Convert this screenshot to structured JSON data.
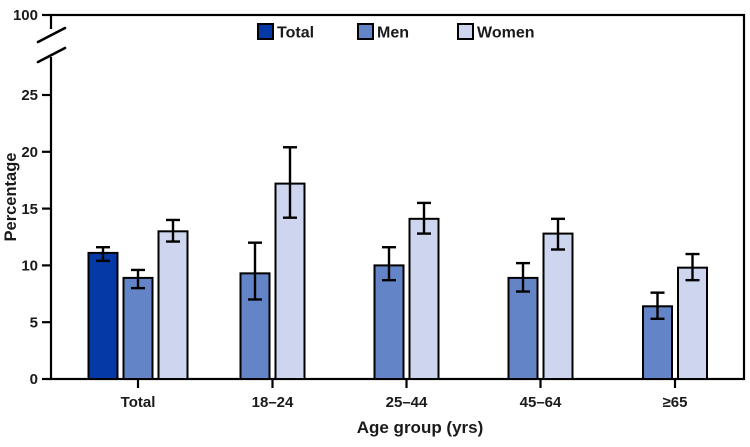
{
  "figure": {
    "background": "#ffffff",
    "text_color": "#1a1a1a",
    "axis_color": "#000000"
  },
  "chart_data": {
    "type": "bar",
    "title": "",
    "xlabel": "Age group (yrs)",
    "ylabel": "Percentage",
    "categories": [
      "Total",
      "18–24",
      "25–44",
      "45–64",
      "≥65"
    ],
    "series": [
      {
        "name": "Total",
        "color": "#0439A6",
        "values": [
          11.1,
          null,
          null,
          null,
          null
        ],
        "ci_low": [
          10.4,
          null,
          null,
          null,
          null
        ],
        "ci_high": [
          11.6,
          null,
          null,
          null,
          null
        ]
      },
      {
        "name": "Men",
        "color": "#6384C6",
        "values": [
          8.9,
          9.3,
          10.0,
          8.9,
          6.4
        ],
        "ci_low": [
          8.0,
          7.0,
          8.7,
          7.7,
          5.3
        ],
        "ci_high": [
          9.6,
          12.0,
          11.6,
          10.2,
          7.6
        ]
      },
      {
        "name": "Women",
        "color": "#CDD6EE",
        "values": [
          13.0,
          17.2,
          14.1,
          12.8,
          9.8
        ],
        "ci_low": [
          12.1,
          14.2,
          12.8,
          11.4,
          8.7
        ],
        "ci_high": [
          14.0,
          20.4,
          15.5,
          14.1,
          11.0
        ]
      }
    ],
    "error_bars": true,
    "grid": false,
    "legend": {
      "position": "top",
      "entries": [
        "Total",
        "Men",
        "Women"
      ]
    },
    "y_axis": {
      "ticks": [
        0,
        5,
        10,
        15,
        20,
        25
      ],
      "broken_axis": true,
      "top_tick_after_break": 100,
      "ylim_shown": [
        0,
        27
      ],
      "full_scale_max": 100
    }
  }
}
